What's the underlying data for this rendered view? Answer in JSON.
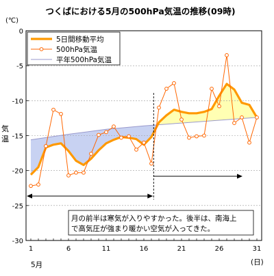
{
  "chart_data": {
    "type": "line",
    "title": "つくばにおける5月の500hPa気温の推移(09時)",
    "unit_label": "(℃)",
    "ylabel": "気温",
    "xlabel": "(日)",
    "month_label": "5月",
    "ylim": [
      -30,
      0
    ],
    "yticks": [
      0,
      -5,
      -10,
      -15,
      -20,
      -25,
      -30
    ],
    "xlim": [
      1,
      31
    ],
    "xticks": [
      1,
      6,
      11,
      16,
      21,
      26,
      31
    ],
    "legend_position": "top-left",
    "series": [
      {
        "name": "5日間移動平均",
        "color": "#FF9900",
        "x": [
          1,
          2,
          3,
          4,
          5,
          6,
          7,
          8,
          9,
          10,
          11,
          12,
          13,
          14,
          15,
          16,
          17,
          18,
          19,
          20,
          21,
          22,
          23,
          24,
          25,
          26,
          27,
          28,
          29,
          30,
          31
        ],
        "values": [
          -20.6,
          -19.5,
          -16.7,
          -16.3,
          -16.1,
          -17.2,
          -18.6,
          -19.2,
          -18.3,
          -17.1,
          -16.1,
          -15.6,
          -15.2,
          -15.3,
          -15.5,
          -16.3,
          -15.2,
          -13.1,
          -12.1,
          -11.3,
          -11.6,
          -11.8,
          -11.8,
          -11.6,
          -11.2,
          -9.3,
          -7.6,
          -8.4,
          -10.3,
          -10.6,
          -12.4
        ]
      },
      {
        "name": "500hPa気温",
        "color": "#FF6600",
        "x": [
          1,
          2,
          3,
          4,
          5,
          6,
          7,
          8,
          9,
          10,
          11,
          12,
          13,
          14,
          15,
          16,
          17,
          18,
          19,
          20,
          21,
          22,
          23,
          24,
          25,
          26,
          27,
          28,
          29,
          30,
          31
        ],
        "values": [
          -22.2,
          -22.0,
          -16.5,
          -11.3,
          -11.9,
          -20.7,
          -20.3,
          -20.3,
          -17.6,
          -14.9,
          -14.5,
          -13.7,
          -15.3,
          -15.1,
          -17.0,
          -16.0,
          -19.0,
          -11.0,
          -8.3,
          -7.5,
          -12.7,
          -15.3,
          -15.1,
          -15.0,
          -8.3,
          -10.8,
          -3.5,
          -13.2,
          -12.4,
          -16.0,
          -12.4
        ]
      },
      {
        "name": "平年500hPa気温",
        "color": "#9999CC",
        "x": [
          1,
          6,
          11,
          16,
          21,
          26,
          31
        ],
        "values": [
          -15.6,
          -14.8,
          -14.1,
          -13.6,
          -13.2,
          -12.8,
          -12.4
        ]
      }
    ],
    "annotation": "月の前半は寒気が入りやすかった。後半は、南海上で高気圧が強まり暖かい空気が入ってきた。",
    "divider_day": 17.3
  }
}
